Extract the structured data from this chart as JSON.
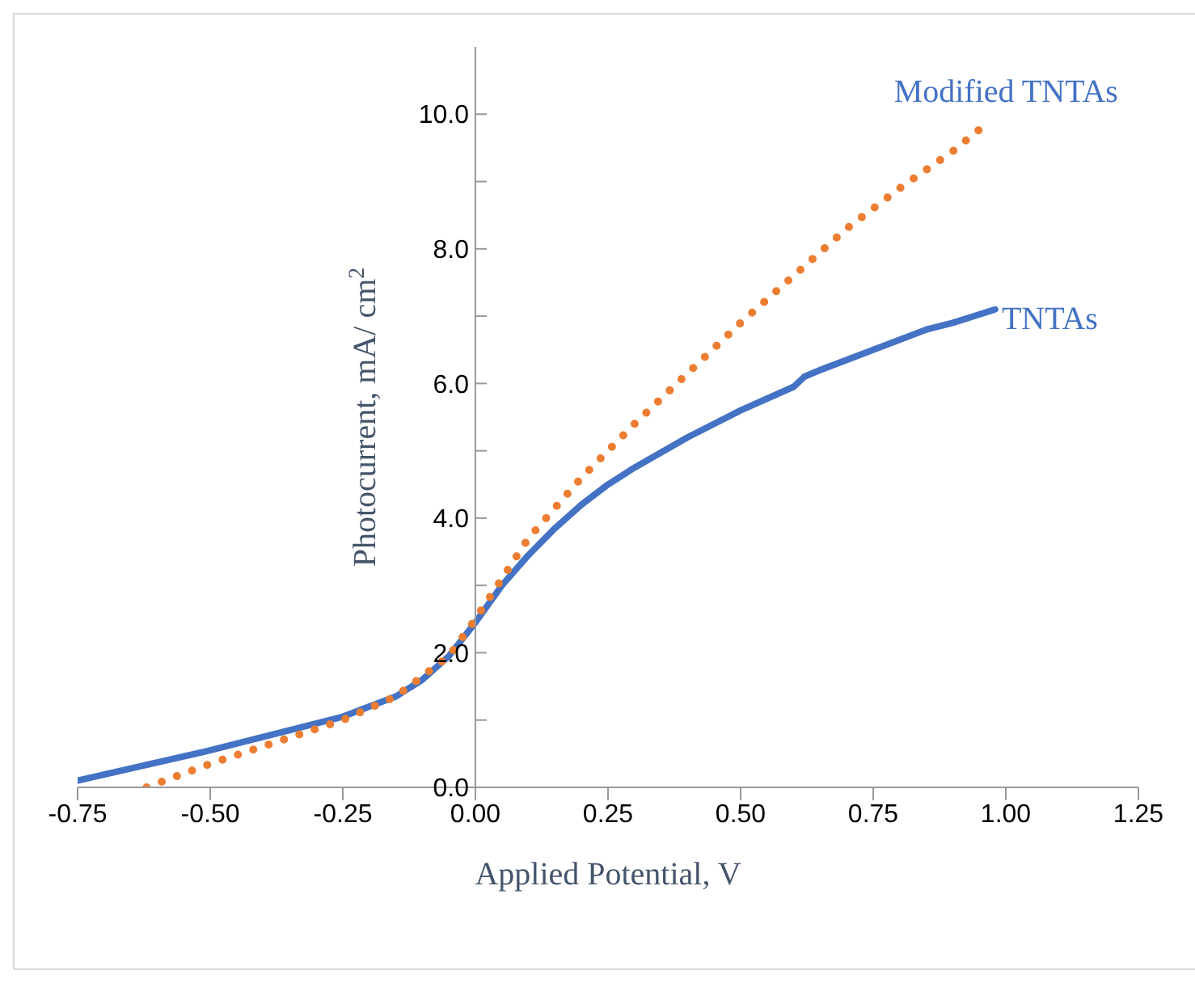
{
  "chart_data": {
    "type": "line",
    "xlabel": "Applied Potential, V",
    "ylabel": "Photocurrent, mA/ cm$^{2}$",
    "xlim": [
      -0.75,
      1.25
    ],
    "xticks": [
      {
        "value": -0.75,
        "label": "-0.75"
      },
      {
        "value": -0.5,
        "label": "-0.50"
      },
      {
        "value": -0.25,
        "label": "-0.25"
      },
      {
        "value": 0,
        "label": "0.00"
      },
      {
        "value": 0.25,
        "label": "0.25"
      },
      {
        "value": 0.5,
        "label": "0.50"
      },
      {
        "value": 0.75,
        "label": "0.75"
      },
      {
        "value": 1,
        "label": "1.00"
      },
      {
        "value": 1.25,
        "label": "1.25"
      }
    ],
    "ylim": [
      0,
      11
    ],
    "yticks": [
      {
        "value": 0,
        "label": "0.0"
      },
      {
        "value": 1,
        "label": null
      },
      {
        "value": 2,
        "label": "2.0"
      },
      {
        "value": 3,
        "label": null
      },
      {
        "value": 4,
        "label": "4.0"
      },
      {
        "value": 5,
        "label": null
      },
      {
        "value": 6,
        "label": "6.0"
      },
      {
        "value": 7,
        "label": null
      },
      {
        "value": 8,
        "label": "8.0"
      },
      {
        "value": 9,
        "label": null
      },
      {
        "value": 10,
        "label": "10.0"
      }
    ],
    "grid": false,
    "legend": false,
    "marker": "none",
    "series": [
      {
        "name": "TNTAs",
        "color": "#4472c4",
        "line_style": "solid",
        "x": [
          -0.75,
          -0.5,
          -0.25,
          -0.15,
          -0.1,
          -0.05,
          0,
          0.05,
          0.1,
          0.15,
          0.2,
          0.25,
          0.3,
          0.4,
          0.5,
          0.6,
          0.62,
          0.65,
          0.75,
          0.85,
          0.9,
          0.98
        ],
        "values": [
          0.1,
          0.55,
          1.05,
          1.35,
          1.6,
          1.95,
          2.45,
          3.0,
          3.45,
          3.85,
          4.2,
          4.5,
          4.75,
          5.2,
          5.6,
          5.95,
          6.1,
          6.2,
          6.5,
          6.8,
          6.9,
          7.1
        ]
      },
      {
        "name": "Modified TNTAs",
        "color": "#ed7d31",
        "line_style": "dotted",
        "x": [
          -0.62,
          -0.5,
          -0.25,
          -0.15,
          -0.05,
          0,
          0.05,
          0.1,
          0.2,
          0.25,
          0.3,
          0.4,
          0.5,
          0.6,
          0.7,
          0.8,
          0.9,
          0.97
        ],
        "values": [
          0,
          0.35,
          1.0,
          1.35,
          1.95,
          2.5,
          3.1,
          3.7,
          4.6,
          5.0,
          5.4,
          6.15,
          6.9,
          7.6,
          8.3,
          8.9,
          9.45,
          9.9
        ]
      }
    ]
  }
}
